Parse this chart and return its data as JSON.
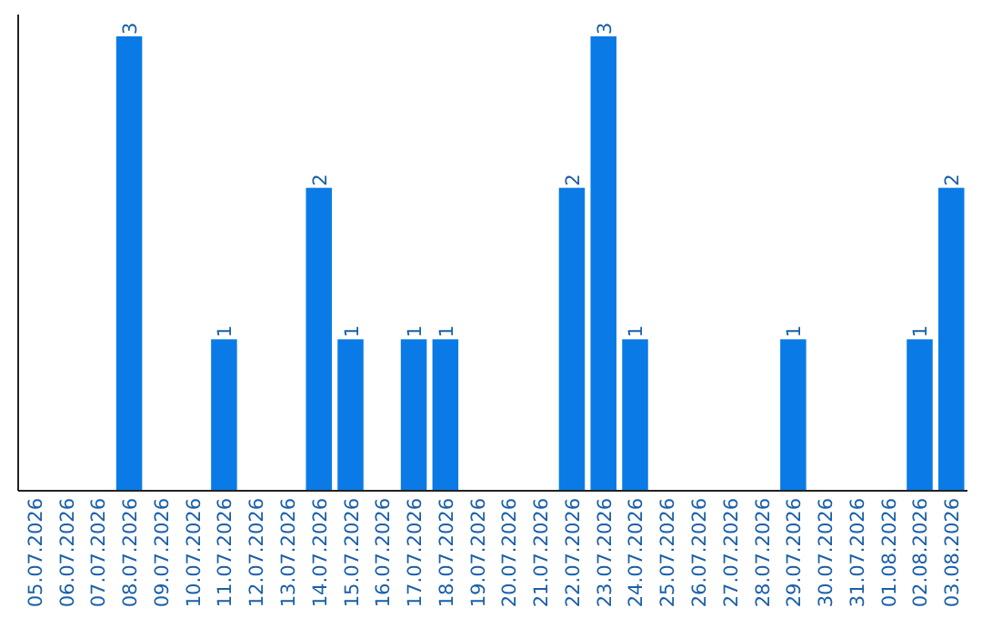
{
  "chart_data": {
    "type": "bar",
    "categories": [
      "05.07.2026",
      "06.07.2026",
      "07.07.2026",
      "08.07.2026",
      "09.07.2026",
      "10.07.2026",
      "11.07.2026",
      "12.07.2026",
      "13.07.2026",
      "14.07.2026",
      "15.07.2026",
      "16.07.2026",
      "17.07.2026",
      "18.07.2026",
      "19.07.2026",
      "20.07.2026",
      "21.07.2026",
      "22.07.2026",
      "23.07.2026",
      "24.07.2026",
      "25.07.2026",
      "26.07.2026",
      "27.07.2026",
      "28.07.2026",
      "29.07.2026",
      "30.07.2026",
      "31.07.2026",
      "01.08.2026",
      "02.08.2026",
      "03.08.2026"
    ],
    "values": [
      0,
      0,
      0,
      3,
      0,
      0,
      1,
      0,
      0,
      2,
      1,
      0,
      1,
      1,
      0,
      0,
      0,
      2,
      3,
      1,
      0,
      0,
      0,
      0,
      1,
      0,
      0,
      0,
      1,
      2
    ],
    "value_labels": [
      null,
      null,
      null,
      "3",
      null,
      null,
      "1",
      null,
      null,
      "2",
      "1",
      null,
      "1",
      "1",
      null,
      null,
      null,
      "2",
      "3",
      "1",
      null,
      null,
      null,
      null,
      "1",
      null,
      null,
      null,
      "1",
      "2"
    ],
    "color": "#0a7be6"
  }
}
